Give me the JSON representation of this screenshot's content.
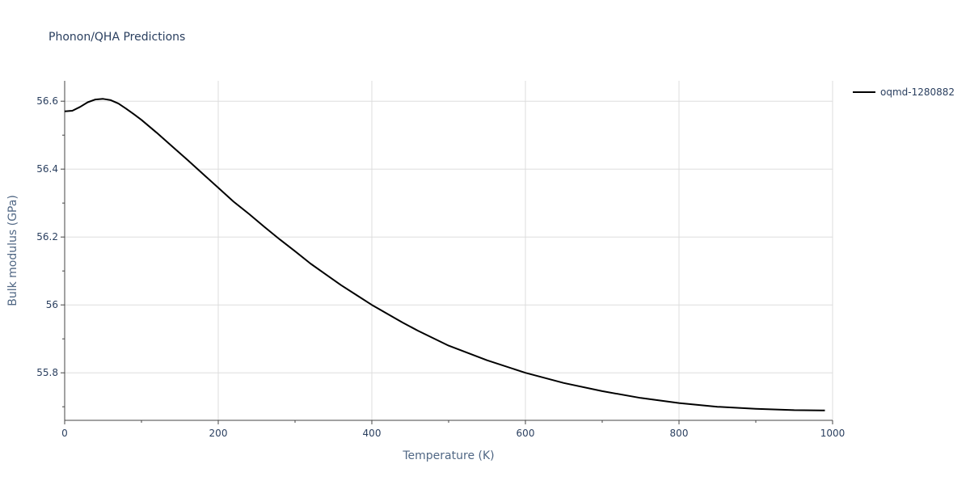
{
  "chart_data": {
    "type": "line",
    "title": "Phonon/QHA Predictions",
    "xlabel": "Temperature (K)",
    "ylabel": "Bulk modulus (GPa)",
    "xlim": [
      0,
      1000
    ],
    "ylim": [
      55.66,
      56.66
    ],
    "x_ticks": [
      0,
      200,
      400,
      600,
      800,
      1000
    ],
    "x_tick_labels": [
      "0",
      "200",
      "400",
      "600",
      "800",
      "1000"
    ],
    "y_ticks": [
      55.8,
      56.0,
      56.2,
      56.4,
      56.6
    ],
    "y_tick_labels": [
      "55.8",
      "56",
      "56.2",
      "56.4",
      "56.6"
    ],
    "grid": true,
    "legend_position": "top-right",
    "colors": {
      "series": "#000000",
      "grid": "#dddddd",
      "text": "#2a3f5f"
    },
    "series": [
      {
        "name": "oqmd-1280882",
        "x": [
          0,
          10,
          20,
          30,
          40,
          50,
          60,
          70,
          80,
          90,
          100,
          120,
          140,
          160,
          180,
          200,
          220,
          240,
          260,
          280,
          300,
          320,
          340,
          360,
          380,
          400,
          420,
          440,
          460,
          480,
          500,
          550,
          600,
          650,
          700,
          750,
          800,
          850,
          900,
          950,
          990
        ],
        "y": [
          56.57,
          56.572,
          56.583,
          56.597,
          56.605,
          56.607,
          56.603,
          56.593,
          56.578,
          56.562,
          56.545,
          56.507,
          56.467,
          56.427,
          56.386,
          56.345,
          56.304,
          56.268,
          56.23,
          56.193,
          56.158,
          56.122,
          56.09,
          56.058,
          56.029,
          56.0,
          55.974,
          55.948,
          55.924,
          55.902,
          55.88,
          55.837,
          55.8,
          55.77,
          55.746,
          55.726,
          55.711,
          55.7,
          55.694,
          55.69,
          55.689
        ]
      }
    ]
  }
}
